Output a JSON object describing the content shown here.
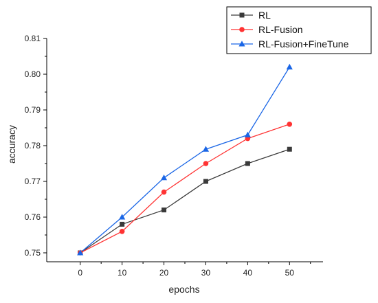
{
  "chart_data": {
    "type": "line",
    "title": "",
    "xlabel": "epochs",
    "ylabel": "accuracy",
    "x": [
      0,
      10,
      20,
      30,
      40,
      50
    ],
    "xlim": [
      -8,
      58
    ],
    "ylim": [
      0.7475,
      0.81
    ],
    "x_ticks": [
      "0",
      "10",
      "20",
      "30",
      "40",
      "50"
    ],
    "y_ticks": [
      "0.75",
      "0.76",
      "0.77",
      "0.78",
      "0.79",
      "0.80",
      "0.81"
    ],
    "grid": false,
    "legend_position": "top-right",
    "series": [
      {
        "name": "RL",
        "color": "#3a3a3a",
        "marker": "square",
        "values": [
          0.75,
          0.758,
          0.762,
          0.77,
          0.775,
          0.779
        ]
      },
      {
        "name": "RL-Fusion",
        "color": "#ff3333",
        "marker": "circle",
        "values": [
          0.75,
          0.756,
          0.767,
          0.775,
          0.782,
          0.786
        ]
      },
      {
        "name": "RL-Fusion+FineTune",
        "color": "#1a66e6",
        "marker": "triangle",
        "values": [
          0.75,
          0.76,
          0.771,
          0.779,
          0.783,
          0.802
        ]
      }
    ]
  }
}
